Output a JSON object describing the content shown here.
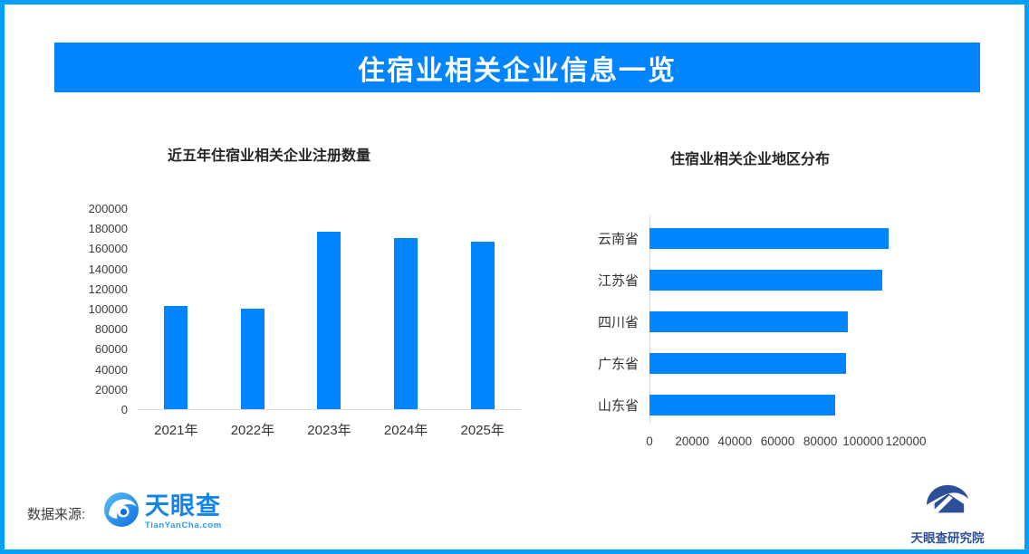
{
  "header": {
    "title": "住宿业相关企业信息一览",
    "bg_color": "#0084ff"
  },
  "frame_color": "#02a0f8",
  "bar_color": "#0084ff",
  "chart_data": [
    {
      "type": "bar",
      "title": "近五年住宿业相关企业注册数量",
      "categories": [
        "2021年",
        "2022年",
        "2023年",
        "2024年",
        "2025年"
      ],
      "values": [
        103000,
        100400,
        176300,
        170300,
        167000
      ],
      "ylabel": "",
      "xlabel": "",
      "ylim": [
        0,
        200000
      ],
      "yticks": [
        0,
        20000,
        40000,
        60000,
        80000,
        100000,
        120000,
        140000,
        160000,
        180000,
        200000
      ],
      "grid": false,
      "legend": "none",
      "bar_color": "#0084ff"
    },
    {
      "type": "bar",
      "orientation": "horizontal",
      "title": "住宿业相关企业地区分布",
      "categories": [
        "云南省",
        "江苏省",
        "四川省",
        "广东省",
        "山东省"
      ],
      "values": [
        112000,
        109000,
        93000,
        92000,
        87000
      ],
      "ylabel": "",
      "xlabel": "",
      "xlim": [
        0,
        120000
      ],
      "xticks": [
        0,
        20000,
        40000,
        60000,
        80000,
        100000,
        120000
      ],
      "grid": false,
      "legend": "none",
      "bar_color": "#0084ff"
    }
  ],
  "footer": {
    "source_label": "数据来源:",
    "tianyancha": {
      "name": "天眼查",
      "domain": "TianYanCha.com"
    },
    "institute": {
      "name": "天眼查研究院"
    }
  }
}
